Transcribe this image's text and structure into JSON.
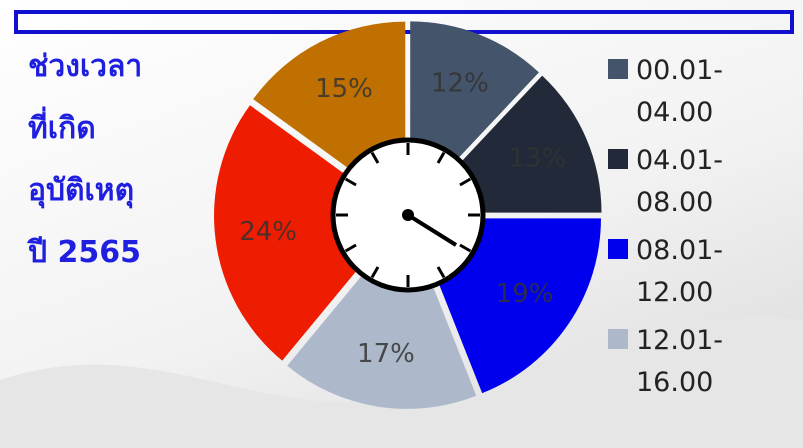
{
  "chart_data": {
    "type": "donut",
    "title_lines": [
      "ช่วงเวลา",
      "ที่เกิด",
      "อุบัติเหตุ",
      "ปี 2565"
    ],
    "categories": [
      "00.01-04.00",
      "04.01-08.00",
      "08.01-12.00",
      "12.01-16.00",
      null,
      null
    ],
    "values": [
      12,
      13,
      19,
      17,
      24,
      15
    ],
    "value_labels": [
      "12%",
      "13%",
      "19%",
      "17%",
      "24%",
      "15%"
    ],
    "colors": [
      "#44546a",
      "#222a3a",
      "#0000ee",
      "#adb9ca",
      "#ee1c00",
      "#c07000"
    ]
  }
}
